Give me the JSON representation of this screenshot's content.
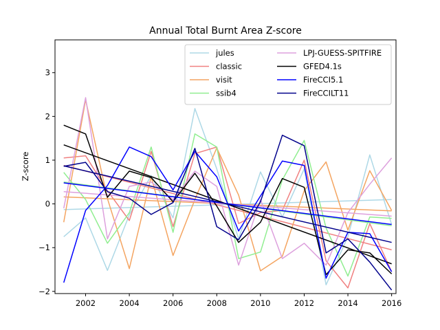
{
  "chart_data": {
    "type": "line",
    "title": "Annual Total Burnt Area Z-score",
    "xlabel": "",
    "ylabel": "Z-score",
    "xlim": [
      2000.6,
      2016.2
    ],
    "ylim": [
      -2.05,
      3.75
    ],
    "xticks": [
      2002,
      2004,
      2006,
      2008,
      2010,
      2012,
      2014,
      2016
    ],
    "yticks": [
      -2,
      -1,
      0,
      1,
      2,
      3
    ],
    "legend_position": "upper-right",
    "x": [
      2001,
      2002,
      2003,
      2004,
      2005,
      2006,
      2007,
      2008,
      2009,
      2010,
      2011,
      2012,
      2013,
      2014,
      2015,
      2016
    ],
    "series": [
      {
        "name": "jules",
        "color": "#add8e6",
        "values": [
          -0.75,
          -0.32,
          -1.52,
          -0.25,
          0.65,
          -0.32,
          2.18,
          0.8,
          -0.8,
          0.73,
          -0.3,
          0.8,
          -1.85,
          -0.75,
          1.12,
          -0.47
        ],
        "trend": [
          -0.13,
          0.1
        ]
      },
      {
        "name": "classic",
        "color": "#f08080",
        "values": [
          1.05,
          1.1,
          0.3,
          -0.38,
          1.2,
          -0.52,
          1.15,
          1.3,
          -0.45,
          -0.2,
          -0.15,
          1.0,
          -1.3,
          -1.92,
          -0.45,
          -1.55
        ],
        "trend": [
          0.88,
          -1.05
        ]
      },
      {
        "name": "visit",
        "color": "#f4a460",
        "values": [
          -0.42,
          2.38,
          0.12,
          -1.48,
          0.62,
          -1.18,
          0.1,
          1.28,
          0.2,
          -1.53,
          -1.2,
          0.3,
          0.96,
          -0.6,
          0.76,
          -0.15
        ],
        "trend": [
          0.16,
          -0.16
        ]
      },
      {
        "name": "ssib4",
        "color": "#90ee90",
        "values": [
          0.72,
          0.1,
          -0.9,
          -0.2,
          1.3,
          -0.65,
          1.6,
          1.3,
          -1.25,
          -1.1,
          0.55,
          1.45,
          -0.55,
          -1.65,
          -0.3,
          -0.33
        ],
        "trend": [
          0.5,
          -0.5
        ]
      },
      {
        "name": "LPJ-GUESS-SPITFIRE",
        "color": "#dda0dd",
        "values": [
          -0.1,
          2.43,
          -0.8,
          0.4,
          0.5,
          0.1,
          0.75,
          0.4,
          -1.4,
          0.1,
          -1.25,
          -0.9,
          -1.4,
          -0.2,
          0.45,
          1.05
        ],
        "trend": [
          0.28,
          -0.28
        ]
      },
      {
        "name": "GFED4.1s",
        "color": "#000000",
        "values": [
          1.8,
          1.6,
          0.15,
          0.75,
          0.6,
          0.05,
          0.7,
          -0.05,
          -0.88,
          -0.42,
          0.58,
          0.38,
          -1.62,
          -1.05,
          -1.12,
          -1.6
        ],
        "trend": [
          1.35,
          -1.37
        ]
      },
      {
        "name": "FireCCI5.1",
        "color": "#0000ff",
        "values": [
          -1.8,
          -0.15,
          0.42,
          1.3,
          1.08,
          0.32,
          1.2,
          0.62,
          -0.62,
          0.18,
          0.98,
          0.88,
          -1.7,
          -0.65,
          -0.68,
          -1.55
        ],
        "trend": [
          0.48,
          -0.47
        ]
      },
      {
        "name": "FireCCILT11",
        "color": "#00008b",
        "values": [
          0.86,
          0.95,
          0.28,
          0.13,
          -0.24,
          0.03,
          1.27,
          -0.52,
          -0.82,
          0.05,
          1.57,
          1.33,
          -1.12,
          -0.8,
          -1.33,
          -1.97
        ],
        "trend": [
          0.87,
          -0.88
        ]
      }
    ]
  }
}
